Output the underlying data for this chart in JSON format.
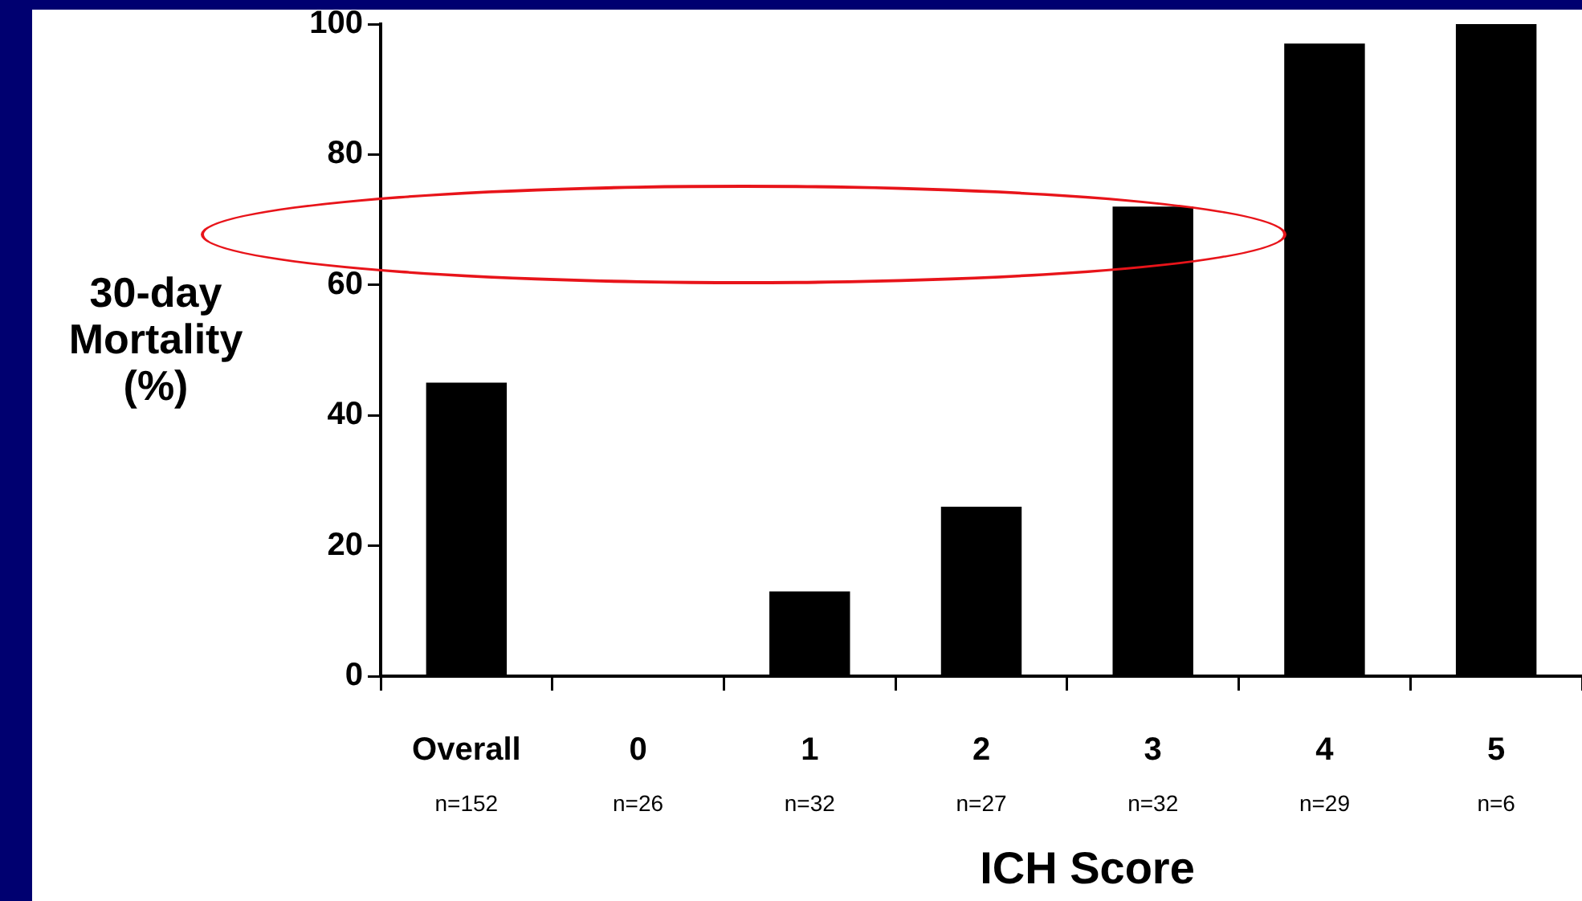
{
  "chart_data": {
    "type": "bar",
    "xlabel": "ICH Score",
    "ylabel": "30-day Mortality (%)",
    "categories": [
      "Overall\nn=152",
      "0\nn=26",
      "1\nn=32",
      "2\nn=27",
      "3\nn=32",
      "4\nn=29",
      "5\nn=6"
    ],
    "values": [
      45,
      0,
      13,
      26,
      72,
      97,
      100
    ],
    "color": "#000000",
    "ylim": [
      0,
      100
    ],
    "yticks": [
      0,
      20,
      40,
      60,
      80,
      100
    ],
    "grid": false,
    "legend": false
  }
}
